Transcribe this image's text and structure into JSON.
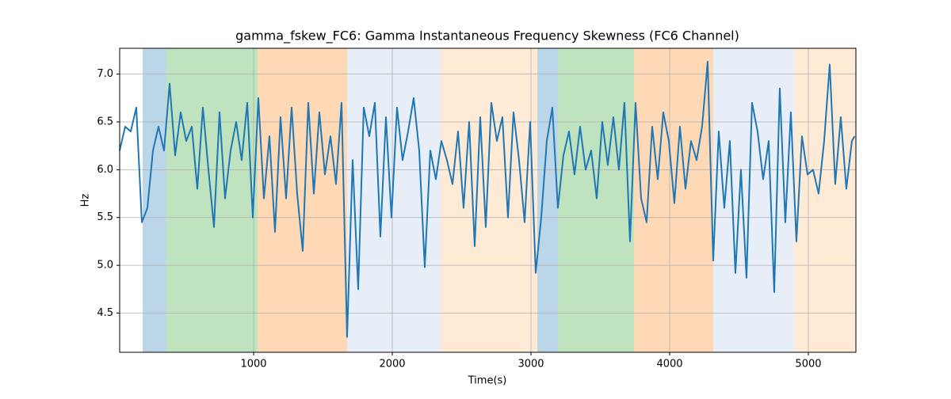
{
  "chart_data": {
    "type": "line",
    "title": "gamma_fskew_FC6: Gamma Instantaneous Frequency Skewness (FC6 Channel)",
    "xlabel": "Time(s)",
    "ylabel": "Hz",
    "xlim": [
      34,
      5343
    ],
    "ylim": [
      4.09,
      7.27
    ],
    "xticks": [
      1000,
      2000,
      3000,
      4000,
      5000
    ],
    "yticks": [
      4.5,
      {
        "value": 5,
        "label": "5.0"
      },
      5.5,
      {
        "value": 6,
        "label": "6.0"
      },
      6.5,
      {
        "value": 7,
        "label": "7.0"
      }
    ],
    "grid": true,
    "spans": [
      {
        "start": 200,
        "end": 371,
        "color": "#1f77b4"
      },
      {
        "start": 371,
        "end": 1029,
        "color": "#2ca02c"
      },
      {
        "start": 1029,
        "end": 1674,
        "color": "#ff7f0e"
      },
      {
        "start": 1674,
        "end": 2349,
        "color": "#aec7e8"
      },
      {
        "start": 2349,
        "end": 3046,
        "color": "#ffbb78"
      },
      {
        "start": 3046,
        "end": 3194,
        "color": "#1f77b4"
      },
      {
        "start": 3194,
        "end": 3743,
        "color": "#2ca02c"
      },
      {
        "start": 3743,
        "end": 4314,
        "color": "#ff7f0e"
      },
      {
        "start": 4314,
        "end": 4897,
        "color": "#aec7e8"
      },
      {
        "start": 4897,
        "end": 5343,
        "color": "#ffbb78"
      }
    ],
    "series": [
      {
        "color": "#1f77b4",
        "x": [
          34,
          74,
          114,
          154,
          194,
          234,
          274,
          314,
          354,
          394,
          434,
          474,
          514,
          554,
          594,
          634,
          674,
          714,
          754,
          794,
          834,
          874,
          914,
          954,
          994,
          1034,
          1074,
          1114,
          1154,
          1194,
          1234,
          1274,
          1314,
          1354,
          1394,
          1434,
          1474,
          1514,
          1554,
          1594,
          1634,
          1674,
          1714,
          1754,
          1794,
          1834,
          1874,
          1914,
          1954,
          1994,
          2034,
          2074,
          2114,
          2154,
          2194,
          2234,
          2274,
          2314,
          2354,
          2394,
          2434,
          2474,
          2514,
          2554,
          2594,
          2634,
          2674,
          2714,
          2754,
          2794,
          2834,
          2874,
          2914,
          2954,
          2994,
          3034,
          3074,
          3114,
          3154,
          3194,
          3234,
          3274,
          3314,
          3354,
          3394,
          3434,
          3474,
          3514,
          3554,
          3594,
          3634,
          3674,
          3714,
          3754,
          3794,
          3834,
          3874,
          3914,
          3954,
          3994,
          4034,
          4074,
          4114,
          4154,
          4194,
          4234,
          4274,
          4314,
          4354,
          4394,
          4434,
          4474,
          4514,
          4554,
          4594,
          4634,
          4674,
          4714,
          4754,
          4794,
          4834,
          4874,
          4914,
          4954,
          4994,
          5034,
          5074,
          5114,
          5154,
          5194,
          5234,
          5274,
          5314,
          5334
        ],
        "values": [
          6.2,
          6.45,
          6.4,
          6.65,
          5.45,
          5.6,
          6.2,
          6.45,
          6.2,
          6.9,
          6.15,
          6.6,
          6.3,
          6.45,
          5.8,
          6.65,
          6.0,
          5.4,
          6.6,
          5.7,
          6.2,
          6.5,
          6.1,
          6.7,
          5.5,
          6.75,
          5.7,
          6.35,
          5.35,
          6.55,
          5.7,
          6.65,
          5.75,
          5.15,
          6.7,
          5.75,
          6.6,
          5.95,
          6.35,
          5.85,
          6.7,
          4.25,
          6.1,
          4.75,
          6.65,
          6.35,
          6.7,
          5.3,
          6.55,
          5.5,
          6.65,
          6.1,
          6.4,
          6.75,
          6.2,
          4.98,
          6.2,
          5.9,
          6.3,
          6.1,
          5.85,
          6.4,
          5.6,
          6.5,
          5.2,
          6.55,
          5.4,
          6.7,
          6.3,
          6.55,
          5.5,
          6.6,
          6.1,
          5.45,
          6.5,
          4.92,
          5.5,
          6.3,
          6.65,
          5.6,
          6.15,
          6.4,
          5.95,
          6.45,
          6.0,
          6.2,
          5.7,
          6.5,
          6.05,
          6.55,
          6.0,
          6.7,
          5.25,
          6.7,
          5.7,
          5.45,
          6.45,
          5.9,
          6.6,
          6.3,
          5.65,
          6.45,
          5.8,
          6.3,
          6.1,
          6.45,
          7.13,
          5.05,
          6.4,
          5.6,
          6.3,
          4.92,
          6.0,
          4.87,
          6.7,
          6.4,
          5.9,
          6.3,
          4.72,
          6.85,
          5.45,
          6.6,
          5.25,
          6.35,
          5.95,
          6.0,
          5.75,
          6.3,
          7.1,
          5.85,
          6.55,
          5.8,
          6.3,
          6.35
        ]
      }
    ]
  }
}
